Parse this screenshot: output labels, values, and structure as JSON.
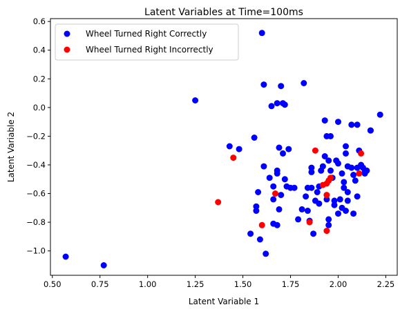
{
  "chart_data": {
    "type": "scatter",
    "title": "Latent Variables at Time=100ms",
    "xlabel": "Latent Variable 1",
    "ylabel": "Latent Variable 2",
    "xlim": [
      0.49,
      2.31
    ],
    "ylim": [
      -1.17,
      0.62
    ],
    "xticks": [
      0.5,
      0.75,
      1.0,
      1.25,
      1.5,
      1.75,
      2.0,
      2.25
    ],
    "xtick_labels": [
      "0.50",
      "0.75",
      "1.00",
      "1.25",
      "1.50",
      "1.75",
      "2.00",
      "2.25"
    ],
    "yticks": [
      -1.0,
      -0.8,
      -0.6,
      -0.4,
      -0.2,
      0.0,
      0.2,
      0.4,
      0.6
    ],
    "ytick_labels": [
      "−1.0",
      "−0.8",
      "−0.6",
      "−0.4",
      "−0.2",
      "0.0",
      "0.2",
      "0.4",
      "0.6"
    ],
    "grid": false,
    "legend_position": "top-left",
    "series": [
      {
        "name": "Wheel Turned Right Correctly",
        "color": "#0000ff",
        "points": [
          [
            0.57,
            -1.04
          ],
          [
            0.77,
            -1.1
          ],
          [
            1.25,
            0.05
          ],
          [
            1.6,
            0.52
          ],
          [
            1.61,
            0.16
          ],
          [
            1.65,
            0.01
          ],
          [
            1.68,
            0.03
          ],
          [
            1.7,
            0.15
          ],
          [
            1.71,
            0.03
          ],
          [
            1.72,
            0.02
          ],
          [
            1.82,
            0.17
          ],
          [
            1.43,
            -0.27
          ],
          [
            1.48,
            -0.29
          ],
          [
            1.56,
            -0.21
          ],
          [
            1.61,
            -0.41
          ],
          [
            1.64,
            -0.49
          ],
          [
            1.66,
            -0.55
          ],
          [
            1.66,
            -0.64
          ],
          [
            1.57,
            -0.69
          ],
          [
            1.57,
            -0.72
          ],
          [
            1.58,
            -0.59
          ],
          [
            1.54,
            -0.88
          ],
          [
            1.59,
            -0.92
          ],
          [
            1.62,
            -1.02
          ],
          [
            1.66,
            -0.81
          ],
          [
            1.68,
            -0.82
          ],
          [
            1.69,
            -0.71
          ],
          [
            1.7,
            -0.61
          ],
          [
            1.68,
            -0.44
          ],
          [
            1.68,
            -0.46
          ],
          [
            1.72,
            -0.5
          ],
          [
            1.73,
            -0.55
          ],
          [
            1.69,
            -0.28
          ],
          [
            1.71,
            -0.32
          ],
          [
            1.74,
            -0.29
          ],
          [
            1.75,
            -0.56
          ],
          [
            1.77,
            -0.56
          ],
          [
            1.79,
            -0.78
          ],
          [
            1.81,
            -0.71
          ],
          [
            1.84,
            -0.56
          ],
          [
            1.83,
            -0.62
          ],
          [
            1.84,
            -0.72
          ],
          [
            1.85,
            -0.79
          ],
          [
            1.86,
            -0.42
          ],
          [
            1.86,
            -0.45
          ],
          [
            1.86,
            -0.56
          ],
          [
            1.87,
            -0.88
          ],
          [
            1.88,
            -0.65
          ],
          [
            1.89,
            -0.59
          ],
          [
            1.9,
            -0.67
          ],
          [
            1.9,
            -0.55
          ],
          [
            1.91,
            -0.44
          ],
          [
            1.92,
            -0.41
          ],
          [
            1.93,
            -0.34
          ],
          [
            1.93,
            -0.09
          ],
          [
            1.94,
            -0.2
          ],
          [
            1.95,
            -0.37
          ],
          [
            1.94,
            -0.64
          ],
          [
            1.95,
            -0.78
          ],
          [
            1.95,
            -0.82
          ],
          [
            1.96,
            -0.2
          ],
          [
            1.96,
            -0.44
          ],
          [
            1.97,
            -0.49
          ],
          [
            1.98,
            -0.65
          ],
          [
            1.98,
            -0.68
          ],
          [
            1.99,
            -0.37
          ],
          [
            2.0,
            -0.1
          ],
          [
            2.0,
            -0.39
          ],
          [
            2.0,
            -0.74
          ],
          [
            2.01,
            -0.64
          ],
          [
            2.02,
            -0.7
          ],
          [
            2.02,
            -0.46
          ],
          [
            2.03,
            -0.52
          ],
          [
            2.03,
            -0.56
          ],
          [
            2.04,
            -0.27
          ],
          [
            2.04,
            -0.32
          ],
          [
            2.04,
            -0.72
          ],
          [
            2.05,
            -0.41
          ],
          [
            2.05,
            -0.59
          ],
          [
            2.05,
            -0.65
          ],
          [
            2.07,
            -0.12
          ],
          [
            2.07,
            -0.42
          ],
          [
            2.08,
            -0.47
          ],
          [
            2.08,
            -0.74
          ],
          [
            2.09,
            -0.51
          ],
          [
            2.1,
            -0.12
          ],
          [
            2.1,
            -0.62
          ],
          [
            2.1,
            -0.42
          ],
          [
            2.11,
            -0.3
          ],
          [
            2.12,
            -0.4
          ],
          [
            2.13,
            -0.42
          ],
          [
            2.14,
            -0.45
          ],
          [
            2.14,
            -0.46
          ],
          [
            2.15,
            -0.44
          ],
          [
            2.17,
            -0.16
          ],
          [
            2.17,
            -0.16
          ],
          [
            2.22,
            -0.05
          ]
        ]
      },
      {
        "name": "Wheel Turned Right Incorrectly",
        "color": "#ff0000",
        "points": [
          [
            1.37,
            -0.66
          ],
          [
            1.45,
            -0.35
          ],
          [
            1.6,
            -0.82
          ],
          [
            1.67,
            -0.6
          ],
          [
            1.85,
            -0.8
          ],
          [
            1.88,
            -0.3
          ],
          [
            1.92,
            -0.54
          ],
          [
            1.94,
            -0.53
          ],
          [
            1.95,
            -0.51
          ],
          [
            1.94,
            -0.61
          ],
          [
            1.96,
            -0.49
          ],
          [
            1.94,
            -0.86
          ],
          [
            2.11,
            -0.46
          ],
          [
            2.12,
            -0.32
          ]
        ]
      }
    ]
  }
}
